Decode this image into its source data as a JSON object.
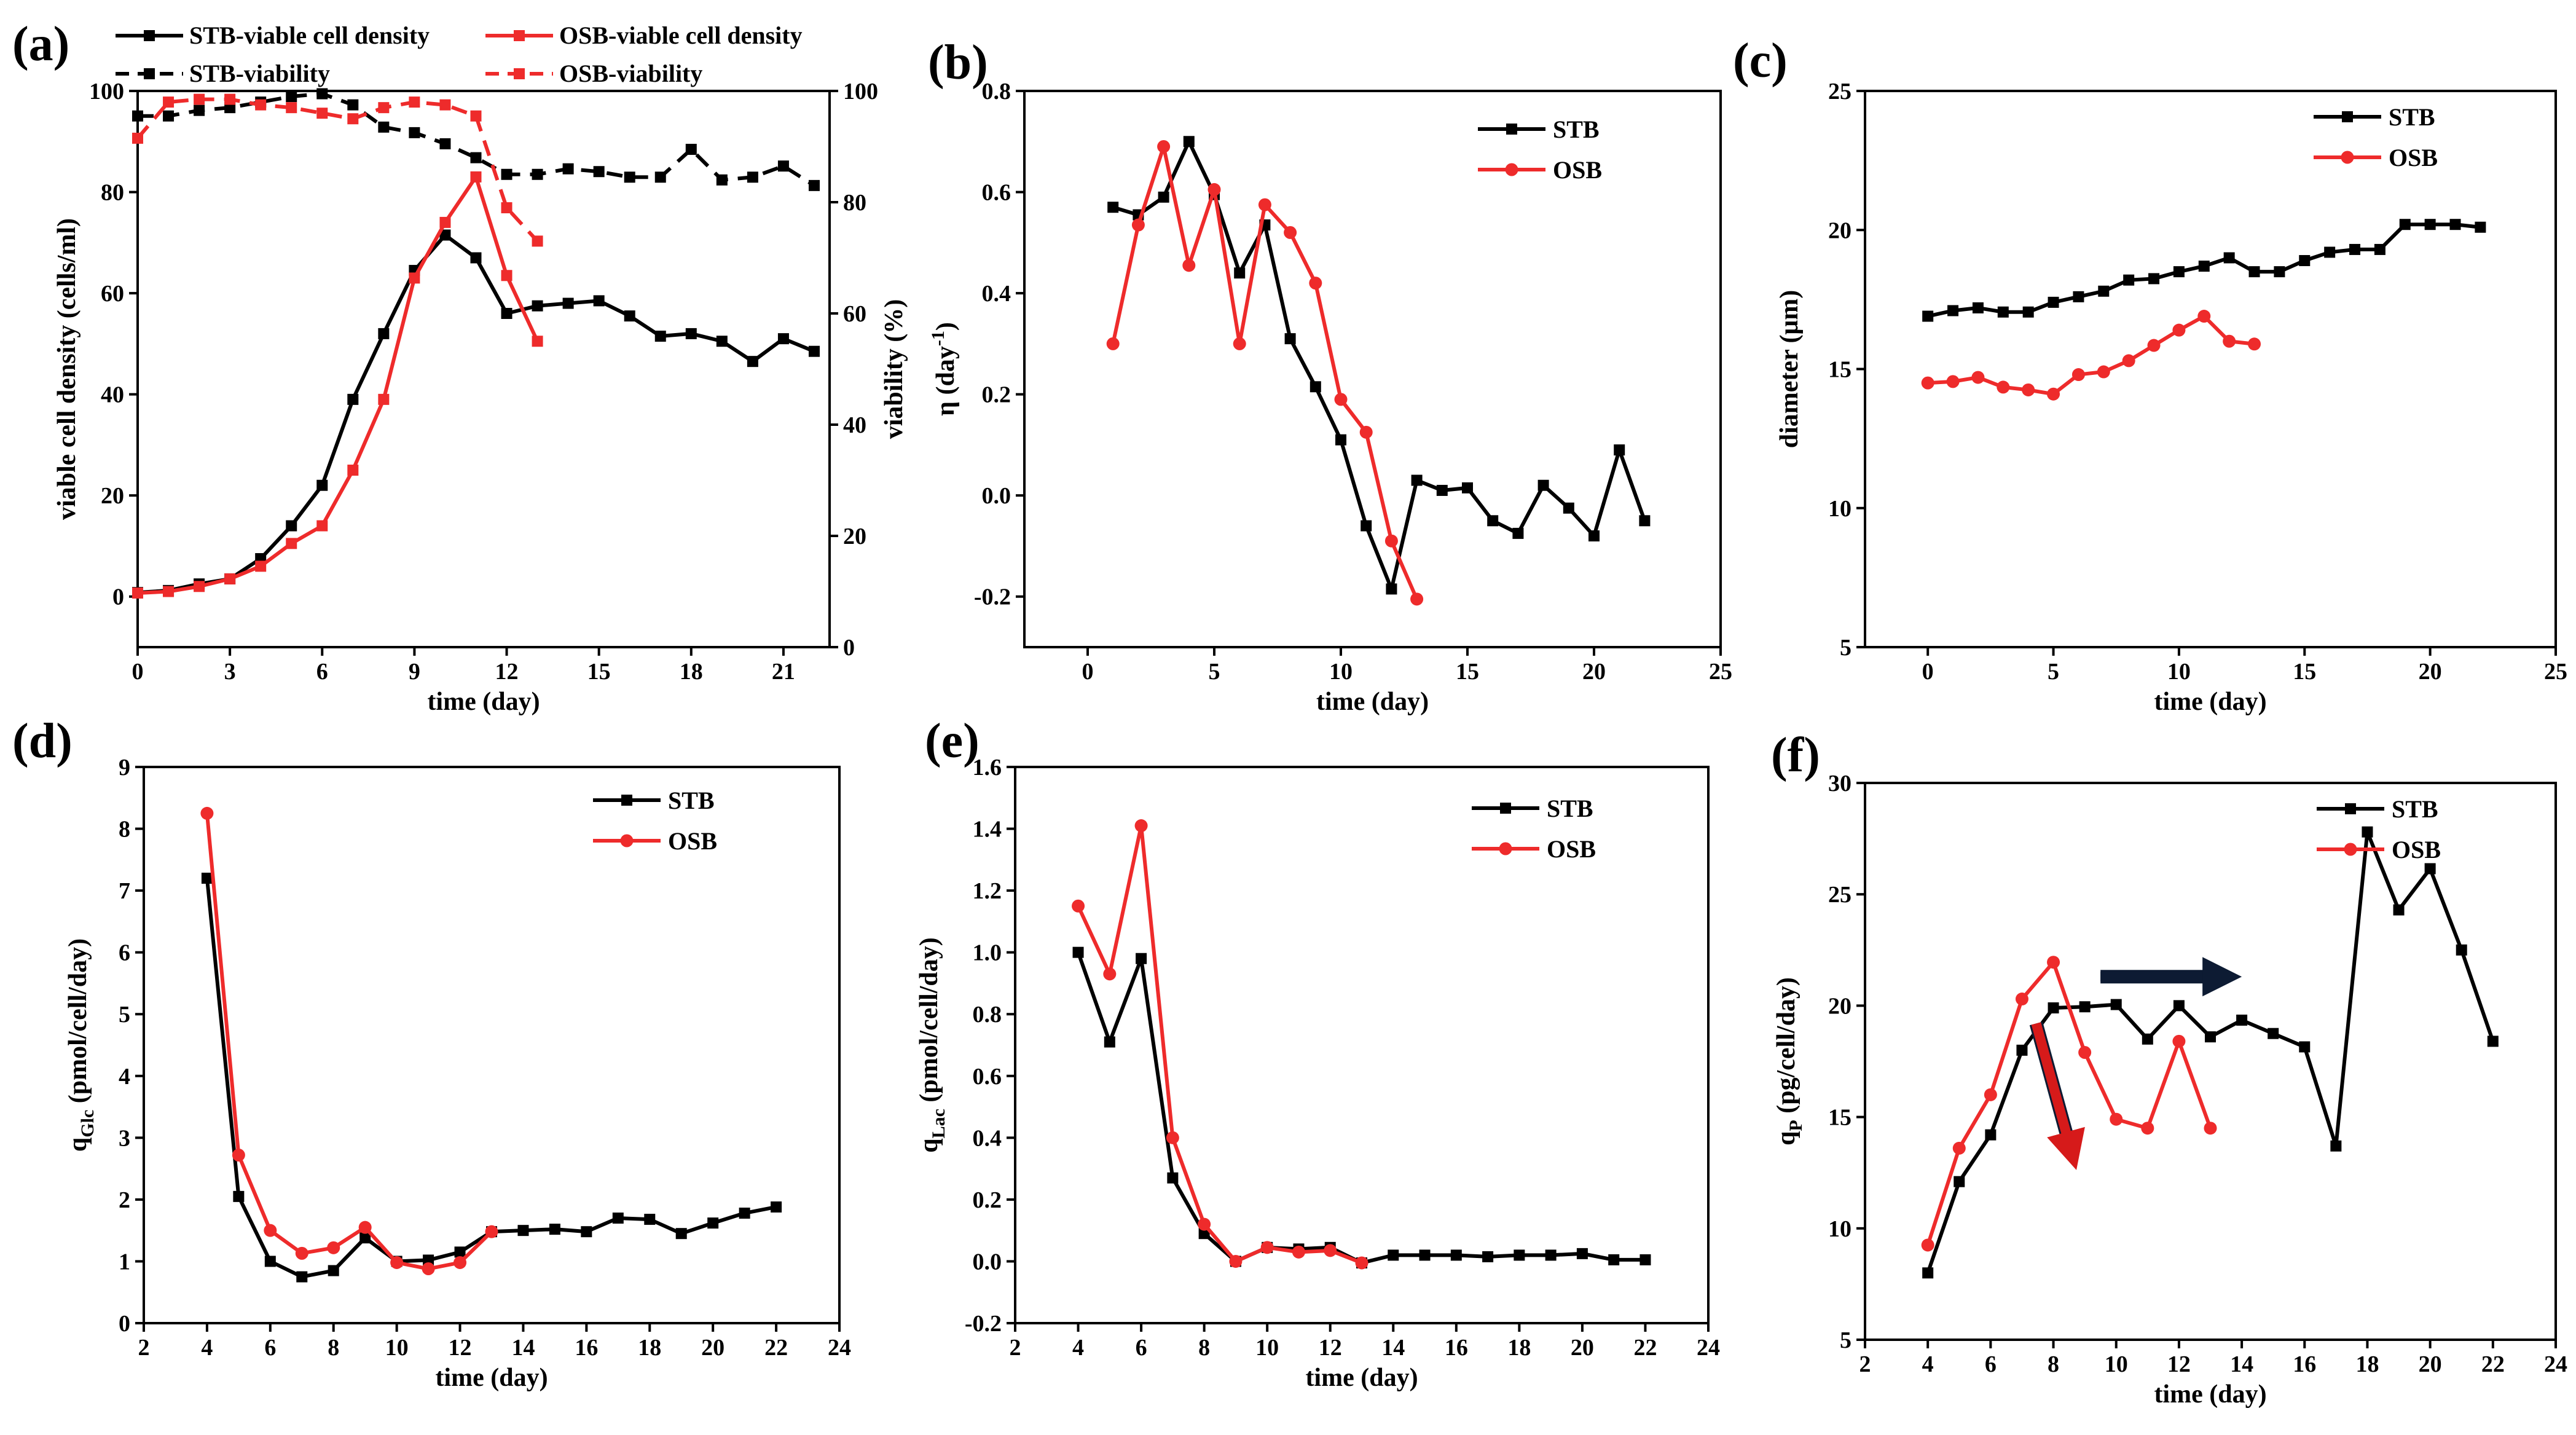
{
  "colors": {
    "stb": "#000000",
    "osb": "#ee2b2b",
    "arrow_red": "#d61a1a",
    "arrow_navy": "#0d1b33"
  },
  "chart_data": [
    {
      "id": "a",
      "panel_label": "(a)",
      "type": "line",
      "xlabel": "time (day)",
      "ylabel": "viable cell density (cells/ml)",
      "ylabel2": "viability (%)",
      "xlim": [
        0,
        22.5
      ],
      "ylim": [
        -10,
        100
      ],
      "ylim2": [
        0,
        100
      ],
      "xticks": [
        0,
        3,
        6,
        9,
        12,
        15,
        18,
        21
      ],
      "yticks": [
        0,
        20,
        40,
        60,
        80,
        100
      ],
      "yticks2": [
        0,
        20,
        40,
        60,
        80,
        100
      ],
      "legend": {
        "position": "top",
        "entries": [
          "STB-viable cell density",
          "OSB-viable cell density",
          "STB-viability",
          "OSB-viability"
        ]
      },
      "series": [
        {
          "name": "STB-viable cell density",
          "color": "stb",
          "marker": "square",
          "dash": false,
          "axis": "left",
          "x": [
            0,
            1,
            2,
            3,
            4,
            5,
            6,
            7,
            8,
            9,
            10,
            11,
            12,
            13,
            14,
            15,
            16,
            17,
            18,
            19,
            20,
            21,
            22
          ],
          "y": [
            0.8,
            1.2,
            2.5,
            3.5,
            7.5,
            14,
            22,
            39,
            52,
            64.5,
            71.5,
            67,
            56,
            57.5,
            58,
            58.5,
            55.5,
            51.5,
            52,
            50.5,
            46.5,
            51,
            48.5
          ]
        },
        {
          "name": "OSB-viable cell density",
          "color": "osb",
          "marker": "square",
          "dash": false,
          "axis": "left",
          "x": [
            0,
            1,
            2,
            3,
            4,
            5,
            6,
            7,
            8,
            9,
            10,
            11,
            12,
            13
          ],
          "y": [
            0.7,
            1,
            2,
            3.5,
            6,
            10.5,
            14,
            25,
            39,
            63,
            74,
            83,
            63.5,
            50.5
          ]
        },
        {
          "name": "STB-viability",
          "color": "stb",
          "marker": "square",
          "dash": true,
          "axis": "right",
          "x": [
            0,
            1,
            2,
            3,
            4,
            5,
            6,
            7,
            8,
            9,
            10,
            11,
            12,
            13,
            14,
            15,
            16,
            17,
            18,
            19,
            20,
            21,
            22
          ],
          "y": [
            95.5,
            95.5,
            96.5,
            97,
            98,
            99,
            99.5,
            97.5,
            93.5,
            92.5,
            90.5,
            88,
            85,
            85,
            86,
            85.5,
            84.5,
            84.5,
            89.5,
            84,
            84.5,
            86.5,
            83
          ]
        },
        {
          "name": "OSB-viability",
          "color": "osb",
          "marker": "square",
          "dash": true,
          "axis": "right",
          "x": [
            0,
            1,
            2,
            3,
            4,
            5,
            6,
            7,
            8,
            9,
            10,
            11,
            12,
            13
          ],
          "y": [
            91.5,
            98,
            98.5,
            98.5,
            97.5,
            97,
            96,
            95,
            97,
            98,
            97.5,
            95.5,
            79,
            73
          ]
        }
      ]
    },
    {
      "id": "b",
      "panel_label": "(b)",
      "type": "line",
      "xlabel": "time (day)",
      "ylabel": "η (day-1)",
      "ylabel_main": "η (day",
      "ylabel_sup": "-1",
      "ylabel_close": ")",
      "xlim": [
        -2.5,
        25
      ],
      "ylim": [
        -0.3,
        0.8
      ],
      "xticks": [
        0,
        5,
        10,
        15,
        20,
        25
      ],
      "yticks": [
        -0.2,
        0.0,
        0.2,
        0.4,
        0.6,
        0.8
      ],
      "ytick_labels": [
        "-0.2",
        "0.0",
        "0.2",
        "0.4",
        "0.6",
        "0.8"
      ],
      "legend": {
        "position": "top-right",
        "entries": [
          "STB",
          "OSB"
        ]
      },
      "series": [
        {
          "name": "STB",
          "color": "stb",
          "marker": "square",
          "x": [
            1,
            2,
            3,
            4,
            5,
            6,
            7,
            8,
            9,
            10,
            11,
            12,
            13,
            14,
            15,
            16,
            17,
            18,
            19,
            20,
            21,
            22
          ],
          "y": [
            0.57,
            0.555,
            0.59,
            0.7,
            0.595,
            0.44,
            0.535,
            0.31,
            0.215,
            0.11,
            -0.06,
            -0.185,
            0.03,
            0.01,
            0.015,
            -0.05,
            -0.075,
            0.02,
            -0.025,
            -0.08,
            0.09,
            -0.05
          ]
        },
        {
          "name": "OSB",
          "color": "osb",
          "marker": "circle",
          "x": [
            1,
            2,
            3,
            4,
            5,
            6,
            7,
            8,
            9,
            10,
            11,
            12,
            13
          ],
          "y": [
            0.3,
            0.535,
            0.69,
            0.455,
            0.605,
            0.3,
            0.575,
            0.52,
            0.42,
            0.19,
            0.125,
            -0.09,
            -0.205
          ]
        }
      ]
    },
    {
      "id": "c",
      "panel_label": "(c)",
      "type": "line",
      "xlabel": "time (day)",
      "ylabel": "diameter (μm)",
      "xlim": [
        -2.5,
        25
      ],
      "ylim": [
        5,
        25
      ],
      "xticks": [
        0,
        5,
        10,
        15,
        20,
        25
      ],
      "yticks": [
        5,
        10,
        15,
        20,
        25
      ],
      "legend": {
        "position": "top-right",
        "entries": [
          "STB",
          "OSB"
        ]
      },
      "series": [
        {
          "name": "STB",
          "color": "stb",
          "marker": "square",
          "x": [
            0,
            1,
            2,
            3,
            4,
            5,
            6,
            7,
            8,
            9,
            10,
            11,
            12,
            13,
            14,
            15,
            16,
            17,
            18,
            19,
            20,
            21,
            22
          ],
          "y": [
            16.9,
            17.1,
            17.2,
            17.05,
            17.05,
            17.4,
            17.6,
            17.8,
            18.2,
            18.25,
            18.5,
            18.7,
            19.0,
            18.5,
            18.5,
            18.9,
            19.2,
            19.3,
            19.3,
            20.2,
            20.2,
            20.2,
            20.1
          ]
        },
        {
          "name": "OSB",
          "color": "osb",
          "marker": "circle",
          "x": [
            0,
            1,
            2,
            3,
            4,
            5,
            6,
            7,
            8,
            9,
            10,
            11,
            12,
            13
          ],
          "y": [
            14.5,
            14.55,
            14.7,
            14.35,
            14.25,
            14.1,
            14.8,
            14.9,
            15.3,
            15.85,
            16.4,
            16.9,
            16.0,
            15.9
          ]
        }
      ]
    },
    {
      "id": "d",
      "panel_label": "(d)",
      "type": "line",
      "xlabel": "time (day)",
      "ylabel": "qGlc (pmol/cell/day)",
      "ylabel_main": "q",
      "ylabel_sub": "Glc",
      "ylabel_rest": " (pmol/cell/day)",
      "xlim": [
        2,
        24
      ],
      "ylim": [
        0,
        9
      ],
      "xticks": [
        2,
        4,
        6,
        8,
        10,
        12,
        14,
        16,
        18,
        20,
        22,
        24
      ],
      "yticks": [
        0,
        1,
        2,
        3,
        4,
        5,
        6,
        7,
        8,
        9
      ],
      "legend": {
        "position": "top-right",
        "entries": [
          "STB",
          "OSB"
        ]
      },
      "series": [
        {
          "name": "STB",
          "color": "stb",
          "marker": "square",
          "x": [
            4,
            5,
            6,
            7,
            8,
            9,
            10,
            11,
            12,
            13,
            14,
            15,
            16,
            17,
            18,
            19,
            20,
            21,
            22
          ],
          "y": [
            7.2,
            2.05,
            1.0,
            0.75,
            0.85,
            1.38,
            1.0,
            1.02,
            1.15,
            1.48,
            1.5,
            1.52,
            1.48,
            1.7,
            1.68,
            1.45,
            1.62,
            1.78,
            1.88
          ]
        },
        {
          "name": "OSB",
          "color": "osb",
          "marker": "circle",
          "x": [
            4,
            5,
            6,
            7,
            8,
            9,
            10,
            11,
            12,
            13
          ],
          "y": [
            8.25,
            2.72,
            1.5,
            1.13,
            1.22,
            1.55,
            0.98,
            0.88,
            0.98,
            1.48
          ]
        }
      ]
    },
    {
      "id": "e",
      "panel_label": "(e)",
      "type": "line",
      "xlabel": "time (day)",
      "ylabel": "qLac (pmol/cell/day)",
      "ylabel_main": "q",
      "ylabel_sub": "Lac",
      "ylabel_rest": " (pmol/cell/day)",
      "xlim": [
        2,
        24
      ],
      "ylim": [
        -0.2,
        1.6
      ],
      "xticks": [
        2,
        4,
        6,
        8,
        10,
        12,
        14,
        16,
        18,
        20,
        22,
        24
      ],
      "yticks": [
        -0.2,
        0.0,
        0.2,
        0.4,
        0.6,
        0.8,
        1.0,
        1.2,
        1.4,
        1.6
      ],
      "ytick_labels": [
        "-0.2",
        "0.0",
        "0.2",
        "0.4",
        "0.6",
        "0.8",
        "1.0",
        "1.2",
        "1.4",
        "1.6"
      ],
      "legend": {
        "position": "top-right",
        "entries": [
          "STB",
          "OSB"
        ]
      },
      "series": [
        {
          "name": "STB",
          "color": "stb",
          "marker": "square",
          "x": [
            4,
            5,
            6,
            7,
            8,
            9,
            10,
            11,
            12,
            13,
            14,
            15,
            16,
            17,
            18,
            19,
            20,
            21,
            22
          ],
          "y": [
            1.0,
            0.71,
            0.98,
            0.27,
            0.09,
            0.0,
            0.045,
            0.04,
            0.045,
            -0.005,
            0.02,
            0.02,
            0.02,
            0.015,
            0.02,
            0.02,
            0.025,
            0.005,
            0.005
          ]
        },
        {
          "name": "OSB",
          "color": "osb",
          "marker": "circle",
          "x": [
            4,
            5,
            6,
            7,
            8,
            9,
            10,
            11,
            12,
            13
          ],
          "y": [
            1.15,
            0.93,
            1.41,
            0.4,
            0.12,
            0.0,
            0.045,
            0.03,
            0.035,
            -0.005
          ]
        }
      ]
    },
    {
      "id": "f",
      "panel_label": "(f)",
      "type": "line",
      "xlabel": "time (day)",
      "ylabel": "qP (pg/cell/day)",
      "ylabel_main": "q",
      "ylabel_sub": "P",
      "ylabel_rest": " (pg/cell/day)",
      "xlim": [
        2,
        24
      ],
      "ylim": [
        5,
        30
      ],
      "xticks": [
        2,
        4,
        6,
        8,
        10,
        12,
        14,
        16,
        18,
        20,
        22,
        24
      ],
      "yticks": [
        5,
        10,
        15,
        20,
        25,
        30
      ],
      "legend": {
        "position": "top-right",
        "entries": [
          "STB",
          "OSB"
        ]
      },
      "annotations": [
        {
          "type": "arrow",
          "color": "arrow_red",
          "from": [
            7.45,
            19.2
          ],
          "to": [
            8.6,
            13.3
          ]
        },
        {
          "type": "arrow",
          "color": "arrow_navy",
          "from": [
            9.5,
            21.3
          ],
          "to": [
            13.5,
            21.3
          ]
        }
      ],
      "series": [
        {
          "name": "STB",
          "color": "stb",
          "marker": "square",
          "x": [
            4,
            5,
            6,
            7,
            8,
            9,
            10,
            11,
            12,
            13,
            14,
            15,
            16,
            17,
            18,
            19,
            20,
            21,
            22
          ],
          "y": [
            8.0,
            12.1,
            14.2,
            18.0,
            19.9,
            19.95,
            20.05,
            18.5,
            20.0,
            18.6,
            19.35,
            18.75,
            18.15,
            13.7,
            27.8,
            24.3,
            26.15,
            22.5,
            18.4
          ]
        },
        {
          "name": "OSB",
          "color": "osb",
          "marker": "circle",
          "x": [
            4,
            5,
            6,
            7,
            8,
            9,
            10,
            11,
            12,
            13
          ],
          "y": [
            9.25,
            13.6,
            16.0,
            20.3,
            21.95,
            17.9,
            14.9,
            14.5,
            18.4,
            14.5
          ]
        }
      ]
    }
  ]
}
